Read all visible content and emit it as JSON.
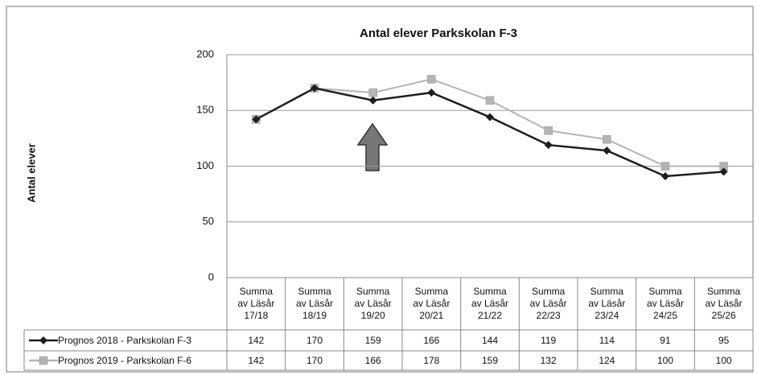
{
  "chart_data": {
    "type": "line",
    "title": "Antal elever Parkskolan F-3",
    "y_label": "Antal elever",
    "categories": [
      "Summa av Läsår 17/18",
      "Summa av Läsår 18/19",
      "Summa av Läsår 19/20",
      "Summa av Läsår 20/21",
      "Summa av Läsår 21/22",
      "Summa av Läsår 22/23",
      "Summa av Läsår 23/24",
      "Summa av Läsår 24/25",
      "Summa av Läsår 25/26"
    ],
    "series": [
      {
        "name": "Prognos 2018 - Parkskolan F-3",
        "color": "#1e1e1e",
        "marker": "diamond",
        "values": [
          142,
          170,
          159,
          166,
          144,
          119,
          114,
          91,
          95
        ]
      },
      {
        "name": "Prognos 2019 - Parkskolan F-6",
        "color": "#b4b4b4",
        "marker": "square",
        "values": [
          142,
          170,
          166,
          178,
          159,
          132,
          124,
          100,
          100
        ]
      }
    ],
    "ylim": [
      0,
      200
    ],
    "yticks": [
      0,
      50,
      100,
      150,
      200
    ],
    "grid": true,
    "data_table": true
  }
}
